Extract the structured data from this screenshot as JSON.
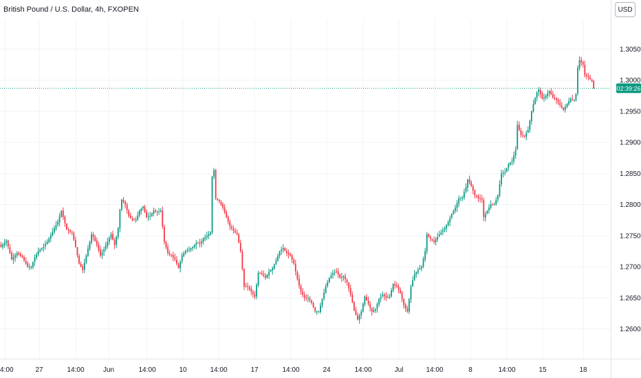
{
  "title": "British Pound / U.S. Dollar, 4h, FXOPEN",
  "currency": "USD",
  "price_label": "02:39:26",
  "colors": {
    "up": "#089981",
    "down": "#f23645",
    "grid": "#f0f3fa",
    "price_line": "#089981"
  },
  "chart_data": {
    "type": "candlestick",
    "title": "British Pound / U.S. Dollar, 4h, FXOPEN",
    "y_ticks": [
      "1.30500",
      "1.30000",
      "1.29500",
      "1.29000",
      "1.28500",
      "1.28000",
      "1.27500",
      "1.27000",
      "1.26500",
      "1.26000"
    ],
    "x_ticks": [
      "14:00",
      "27",
      "14:00",
      "Jun",
      "14:00",
      "10",
      "14:00",
      "17",
      "14:00",
      "24",
      "14:00",
      "Jul",
      "14:00",
      "8",
      "14:00",
      "15",
      "18"
    ],
    "ylim": [
      1.2552,
      1.3098
    ],
    "current_price": 1.2987,
    "close_path": [
      [
        0,
        1.2732
      ],
      [
        3,
        1.2742
      ],
      [
        6,
        1.2712
      ],
      [
        9,
        1.2722
      ],
      [
        12,
        1.2715
      ],
      [
        15,
        1.27
      ],
      [
        17,
        1.27
      ],
      [
        19,
        1.2715
      ],
      [
        21,
        1.2725
      ],
      [
        24,
        1.2732
      ],
      [
        26,
        1.274
      ],
      [
        28,
        1.275
      ],
      [
        30,
        1.2762
      ],
      [
        32,
        1.2772
      ],
      [
        34,
        1.279
      ],
      [
        35,
        1.278
      ],
      [
        37,
        1.276
      ],
      [
        40,
        1.2755
      ],
      [
        42,
        1.2732
      ],
      [
        44,
        1.2705
      ],
      [
        46,
        1.2695
      ],
      [
        48,
        1.2718
      ],
      [
        50,
        1.274
      ],
      [
        51,
        1.2752
      ],
      [
        52,
        1.2748
      ],
      [
        54,
        1.2735
      ],
      [
        56,
        1.2718
      ],
      [
        58,
        1.2728
      ],
      [
        60,
        1.274
      ],
      [
        62,
        1.2752
      ],
      [
        64,
        1.2735
      ],
      [
        66,
        1.2762
      ],
      [
        67,
        1.2792
      ],
      [
        68,
        1.2808
      ],
      [
        70,
        1.28
      ],
      [
        72,
        1.2782
      ],
      [
        74,
        1.2775
      ],
      [
        76,
        1.2775
      ],
      [
        78,
        1.279
      ],
      [
        80,
        1.2797
      ],
      [
        82,
        1.278
      ],
      [
        84,
        1.2782
      ],
      [
        86,
        1.279
      ],
      [
        88,
        1.2788
      ],
      [
        90,
        1.279
      ],
      [
        92,
        1.274
      ],
      [
        94,
        1.2722
      ],
      [
        96,
        1.2718
      ],
      [
        98,
        1.2712
      ],
      [
        100,
        1.2698
      ],
      [
        102,
        1.2718
      ],
      [
        104,
        1.2725
      ],
      [
        106,
        1.2728
      ],
      [
        108,
        1.2732
      ],
      [
        110,
        1.2738
      ],
      [
        112,
        1.2737
      ],
      [
        114,
        1.2745
      ],
      [
        116,
        1.275
      ],
      [
        118,
        1.2755
      ],
      [
        119,
        1.2845
      ],
      [
        120,
        1.2855
      ],
      [
        121,
        1.281
      ],
      [
        123,
        1.2805
      ],
      [
        125,
        1.2795
      ],
      [
        127,
        1.278
      ],
      [
        129,
        1.2765
      ],
      [
        131,
        1.2758
      ],
      [
        133,
        1.2752
      ],
      [
        135,
        1.2725
      ],
      [
        137,
        1.2668
      ],
      [
        139,
        1.2668
      ],
      [
        141,
        1.266
      ],
      [
        143,
        1.2652
      ],
      [
        145,
        1.269
      ],
      [
        147,
        1.2688
      ],
      [
        149,
        1.2682
      ],
      [
        151,
        1.2692
      ],
      [
        153,
        1.2698
      ],
      [
        155,
        1.271
      ],
      [
        157,
        1.2725
      ],
      [
        159,
        1.273
      ],
      [
        161,
        1.2722
      ],
      [
        163,
        1.2718
      ],
      [
        165,
        1.2705
      ],
      [
        167,
        1.268
      ],
      [
        169,
        1.266
      ],
      [
        171,
        1.265
      ],
      [
        173,
        1.265
      ],
      [
        175,
        1.2642
      ],
      [
        177,
        1.2628
      ],
      [
        179,
        1.2628
      ],
      [
        181,
        1.2648
      ],
      [
        183,
        1.2668
      ],
      [
        185,
        1.2682
      ],
      [
        187,
        1.269
      ],
      [
        189,
        1.2692
      ],
      [
        191,
        1.2682
      ],
      [
        193,
        1.2685
      ],
      [
        195,
        1.2675
      ],
      [
        197,
        1.2655
      ],
      [
        199,
        1.263
      ],
      [
        201,
        1.2615
      ],
      [
        203,
        1.2628
      ],
      [
        205,
        1.2652
      ],
      [
        207,
        1.264
      ],
      [
        209,
        1.2628
      ],
      [
        211,
        1.2632
      ],
      [
        213,
        1.2648
      ],
      [
        215,
        1.2655
      ],
      [
        217,
        1.265
      ],
      [
        219,
        1.2652
      ],
      [
        221,
        1.2672
      ],
      [
        223,
        1.2668
      ],
      [
        225,
        1.2658
      ],
      [
        227,
        1.2638
      ],
      [
        229,
        1.2628
      ],
      [
        231,
        1.2668
      ],
      [
        233,
        1.2688
      ],
      [
        235,
        1.2695
      ],
      [
        237,
        1.27
      ],
      [
        239,
        1.2725
      ],
      [
        240,
        1.2752
      ],
      [
        242,
        1.2745
      ],
      [
        244,
        1.274
      ],
      [
        246,
        1.2748
      ],
      [
        248,
        1.2755
      ],
      [
        250,
        1.2762
      ],
      [
        252,
        1.2772
      ],
      [
        254,
        1.2785
      ],
      [
        256,
        1.2795
      ],
      [
        258,
        1.281
      ],
      [
        260,
        1.2812
      ],
      [
        262,
        1.2828
      ],
      [
        263,
        1.284
      ],
      [
        265,
        1.283
      ],
      [
        267,
        1.2815
      ],
      [
        269,
        1.281
      ],
      [
        271,
        1.2808
      ],
      [
        272,
        1.278
      ],
      [
        274,
        1.279
      ],
      [
        276,
        1.28
      ],
      [
        278,
        1.28
      ],
      [
        280,
        1.2815
      ],
      [
        282,
        1.285
      ],
      [
        284,
        1.2852
      ],
      [
        286,
        1.2865
      ],
      [
        288,
        1.287
      ],
      [
        290,
        1.2888
      ],
      [
        291,
        1.2928
      ],
      [
        293,
        1.2912
      ],
      [
        295,
        1.291
      ],
      [
        297,
        1.292
      ],
      [
        299,
        1.295
      ],
      [
        300,
        1.2962
      ],
      [
        302,
        1.298
      ],
      [
        303,
        1.2985
      ],
      [
        305,
        1.297
      ],
      [
        307,
        1.2975
      ],
      [
        309,
        1.2982
      ],
      [
        311,
        1.2972
      ],
      [
        313,
        1.2968
      ],
      [
        315,
        1.296
      ],
      [
        317,
        1.2952
      ],
      [
        319,
        1.2962
      ],
      [
        321,
        1.297
      ],
      [
        323,
        1.2968
      ],
      [
        324,
        1.2978
      ],
      [
        325,
        1.302
      ],
      [
        326,
        1.3032
      ],
      [
        328,
        1.3025
      ],
      [
        329,
        1.3008
      ],
      [
        331,
        1.3005
      ],
      [
        333,
        1.2998
      ],
      [
        334,
        1.2987
      ]
    ]
  }
}
